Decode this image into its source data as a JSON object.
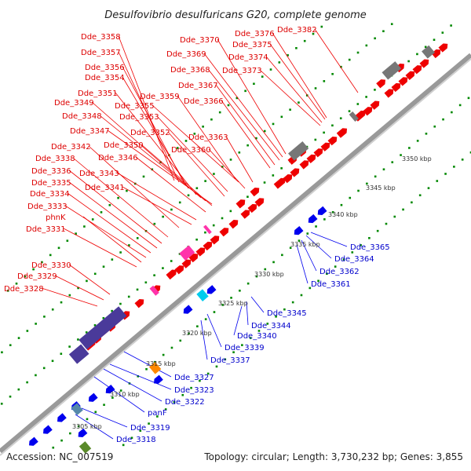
{
  "title": "Desulfovibrio desulfuricans G20, complete genome",
  "footer": {
    "accession": "Accession: NC_007519",
    "summary": "Topology: circular; Length: 3,730,232 bp; Genes: 3,855"
  },
  "colors": {
    "forward": "#ee0000",
    "reverse": "#0000ee",
    "rna": "#ff33aa",
    "pseudo": "#888888",
    "other": "#4a3a9a",
    "tick": "#008800",
    "backbone": "#999999"
  },
  "ticks": [
    "3305 kbp",
    "3310 kbp",
    "3315 kbp",
    "3320 kbp",
    "3325 kbp",
    "3330 kbp",
    "3335 kbp",
    "3340 kbp",
    "3345 kbp",
    "3350 kbp"
  ],
  "top_labels": [
    "Dde_3358",
    "Dde_3357",
    "Dde_3356",
    "Dde_3354",
    "Dde_3351",
    "Dde_3349",
    "Dde_3348",
    "Dde_3347",
    "Dde_3342",
    "Dde_3338",
    "Dde_3336",
    "Dde_3335",
    "Dde_3334",
    "Dde_3333",
    "phnK",
    "Dde_3331",
    "Dde_3330",
    "Dde_3329",
    "Dde_3328",
    "Dde_3359",
    "Dde_3355",
    "Dde_3353",
    "Dde_3352",
    "Dde_3350",
    "Dde_3346",
    "Dde_3343",
    "Dde_3341",
    "Dde_3370",
    "Dde_3369",
    "Dde_3368",
    "Dde_3367",
    "Dde_3366",
    "Dde_3363",
    "Dde_3360",
    "Dde_3376",
    "Dde_3375",
    "Dde_3374",
    "Dde_3373",
    "Dde_3382"
  ],
  "bottom_labels": [
    "Dde_3365",
    "Dde_3364",
    "Dde_3362",
    "Dde_3361",
    "Dde_3345",
    "Dde_3344",
    "Dde_3340",
    "Dde_3339",
    "Dde_3337",
    "Dde_3327",
    "Dde_3323",
    "Dde_3322",
    "panF",
    "Dde_3319",
    "Dde_3318"
  ]
}
